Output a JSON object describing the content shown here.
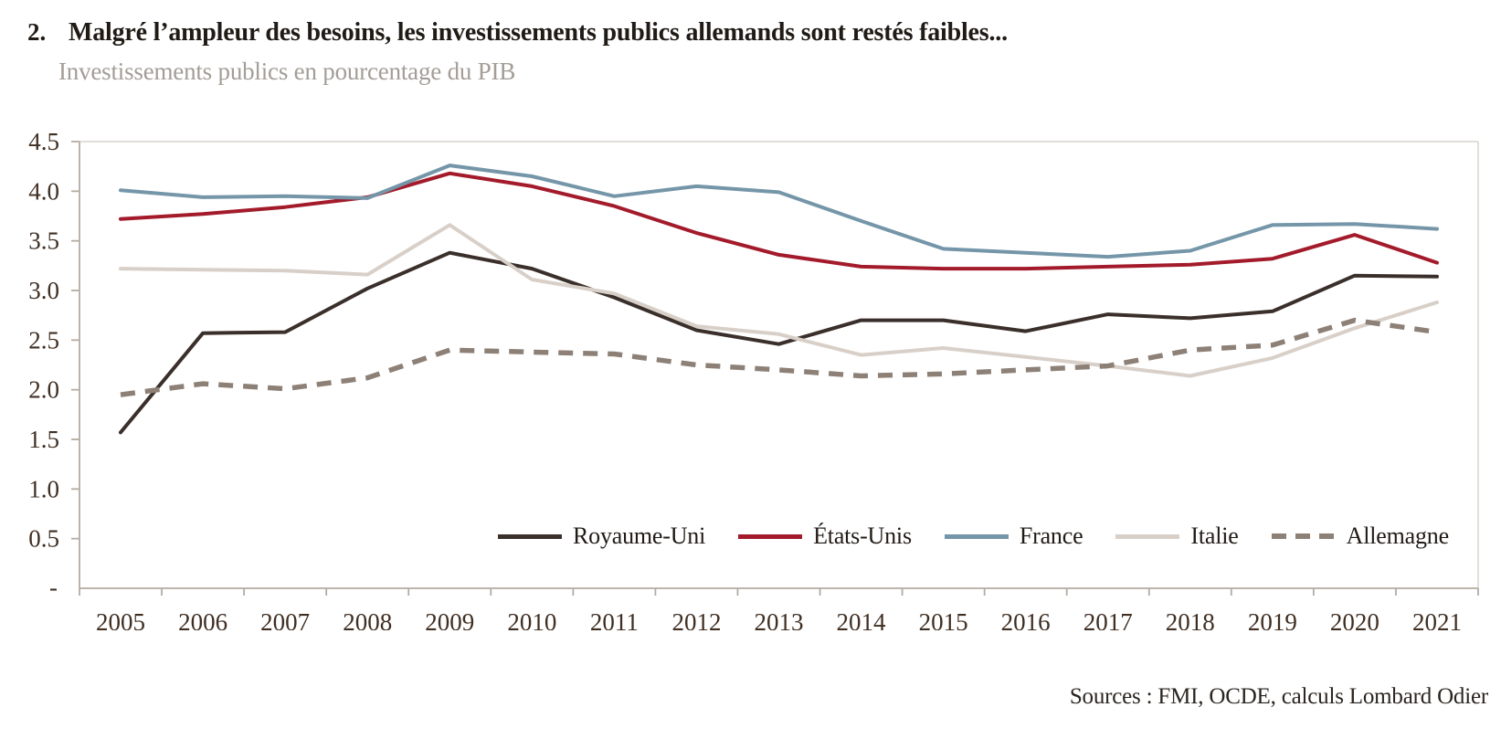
{
  "header": {
    "number": "2.",
    "title": "Malgré l’ampleur des besoins, les investissements publics allemands sont restés faibles...",
    "subtitle": "Investissements publics en pourcentage du PIB"
  },
  "source_note": "Sources : FMI, OCDE, calculs Lombard Odier",
  "colors": {
    "axis": "#b5aba1",
    "plot_border": "#d9d3cc",
    "tick_text": "#3f2e22",
    "title_text": "#211b16",
    "subtitle_text": "#a39d96"
  },
  "chart_data": {
    "type": "line",
    "title": "Investissements publics en pourcentage du PIB",
    "xlabel": "",
    "ylabel": "",
    "ylim": [
      0,
      4.5
    ],
    "ytick_step": 0.5,
    "zero_tick_label": "-",
    "grid": false,
    "legend_position": "bottom-inside",
    "categories": [
      2005,
      2006,
      2007,
      2008,
      2009,
      2010,
      2011,
      2012,
      2013,
      2014,
      2015,
      2016,
      2017,
      2018,
      2019,
      2020,
      2021
    ],
    "series": [
      {
        "name": "Royaume-Uni",
        "color": "#3a2f2a",
        "dashed": false,
        "width": 4,
        "values": [
          1.57,
          2.57,
          2.58,
          3.02,
          3.38,
          3.22,
          2.93,
          2.6,
          2.46,
          2.7,
          2.7,
          2.59,
          2.76,
          2.72,
          2.79,
          3.15,
          3.14
        ]
      },
      {
        "name": "États-Unis",
        "color": "#a31b2b",
        "dashed": false,
        "width": 4,
        "values": [
          3.72,
          3.77,
          3.84,
          3.94,
          4.18,
          4.05,
          3.85,
          3.58,
          3.36,
          3.24,
          3.22,
          3.22,
          3.24,
          3.26,
          3.32,
          3.56,
          3.28
        ]
      },
      {
        "name": "France",
        "color": "#7496a8",
        "dashed": false,
        "width": 4,
        "values": [
          4.01,
          3.94,
          3.95,
          3.93,
          4.26,
          4.15,
          3.95,
          4.05,
          3.99,
          3.7,
          3.42,
          3.38,
          3.34,
          3.4,
          3.66,
          3.67,
          3.62
        ]
      },
      {
        "name": "Italie",
        "color": "#d8d0c8",
        "dashed": false,
        "width": 4,
        "values": [
          3.22,
          3.21,
          3.2,
          3.16,
          3.66,
          3.11,
          2.97,
          2.64,
          2.56,
          2.35,
          2.42,
          2.33,
          2.24,
          2.14,
          2.32,
          2.62,
          2.88
        ]
      },
      {
        "name": "Allemagne",
        "color": "#8d8177",
        "dashed": true,
        "width": 5.5,
        "values": [
          1.95,
          2.06,
          2.01,
          2.12,
          2.4,
          2.38,
          2.36,
          2.25,
          2.2,
          2.14,
          2.16,
          2.2,
          2.24,
          2.4,
          2.45,
          2.7,
          2.58
        ]
      }
    ]
  }
}
